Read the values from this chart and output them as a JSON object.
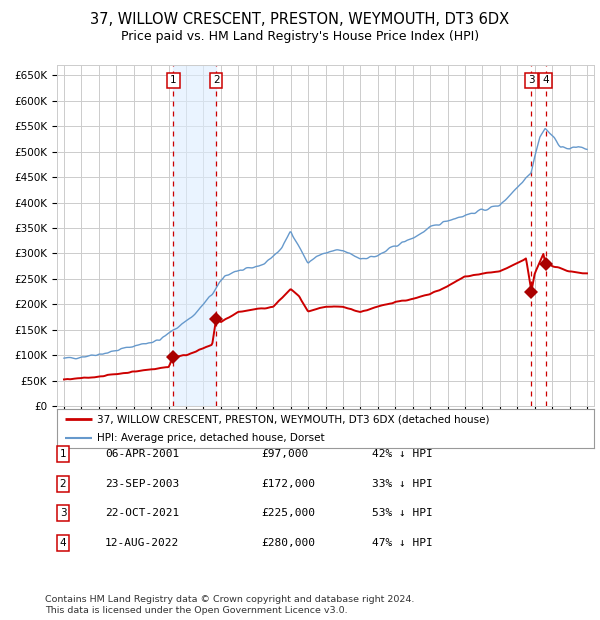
{
  "title": "37, WILLOW CRESCENT, PRESTON, WEYMOUTH, DT3 6DX",
  "subtitle": "Price paid vs. HM Land Registry's House Price Index (HPI)",
  "ylim": [
    0,
    670000
  ],
  "yticks": [
    0,
    50000,
    100000,
    150000,
    200000,
    250000,
    300000,
    350000,
    400000,
    450000,
    500000,
    550000,
    600000,
    650000
  ],
  "xlim_start": 1994.6,
  "xlim_end": 2025.4,
  "title_fontsize": 10.5,
  "subtitle_fontsize": 9,
  "legend1_label": "37, WILLOW CRESCENT, PRESTON, WEYMOUTH, DT3 6DX (detached house)",
  "legend2_label": "HPI: Average price, detached house, Dorset",
  "property_color": "#cc0000",
  "hpi_color": "#6699cc",
  "grid_color": "#cccccc",
  "shade_color": "#ddeeff",
  "vline_color": "#cc0000",
  "marker_color": "#aa0000",
  "transactions": [
    {
      "num": 1,
      "date": 2001.27,
      "price": 97000,
      "label": "06-APR-2001",
      "price_str": "£97,000",
      "pct": "42% ↓ HPI"
    },
    {
      "num": 2,
      "date": 2003.73,
      "price": 172000,
      "label": "23-SEP-2003",
      "price_str": "£172,000",
      "pct": "33% ↓ HPI"
    },
    {
      "num": 3,
      "date": 2021.81,
      "price": 225000,
      "label": "22-OCT-2021",
      "price_str": "£225,000",
      "pct": "53% ↓ HPI"
    },
    {
      "num": 4,
      "date": 2022.62,
      "price": 280000,
      "label": "12-AUG-2022",
      "price_str": "£280,000",
      "pct": "47% ↓ HPI"
    }
  ],
  "footer1": "Contains HM Land Registry data © Crown copyright and database right 2024.",
  "footer2": "This data is licensed under the Open Government Licence v3.0.",
  "hpi_anchors_x": [
    1995.0,
    1996.0,
    1997.5,
    1999.0,
    2000.5,
    2001.5,
    2002.5,
    2003.5,
    2004.2,
    2004.8,
    2005.5,
    2006.5,
    2007.5,
    2008.0,
    2009.0,
    2009.5,
    2010.5,
    2011.0,
    2012.0,
    2013.0,
    2014.0,
    2015.0,
    2016.0,
    2017.0,
    2018.0,
    2019.0,
    2020.0,
    2021.0,
    2021.5,
    2021.8,
    2022.0,
    2022.3,
    2022.6,
    2022.9,
    2023.5,
    2024.0,
    2024.5,
    2025.0
  ],
  "hpi_anchors_y": [
    93000,
    97000,
    105000,
    118000,
    130000,
    155000,
    180000,
    220000,
    255000,
    265000,
    268000,
    280000,
    310000,
    345000,
    280000,
    295000,
    305000,
    305000,
    290000,
    295000,
    315000,
    330000,
    350000,
    365000,
    375000,
    385000,
    395000,
    430000,
    450000,
    460000,
    490000,
    530000,
    545000,
    535000,
    510000,
    505000,
    510000,
    505000
  ],
  "prop_anchors_x": [
    1995.0,
    1996.5,
    1998.0,
    1999.5,
    2001.0,
    2001.27,
    2001.5,
    2002.0,
    2002.5,
    2003.5,
    2003.73,
    2004.0,
    2005.0,
    2006.0,
    2007.0,
    2008.0,
    2008.5,
    2009.0,
    2010.0,
    2011.0,
    2012.0,
    2013.0,
    2014.0,
    2015.0,
    2016.0,
    2017.0,
    2018.0,
    2019.0,
    2020.0,
    2021.0,
    2021.5,
    2021.81,
    2022.0,
    2022.5,
    2022.62,
    2022.8,
    2023.0,
    2024.0,
    2025.0
  ],
  "prop_anchors_y": [
    52000,
    56000,
    63000,
    70000,
    77000,
    97000,
    98000,
    100000,
    107000,
    120000,
    172000,
    165000,
    185000,
    190000,
    195000,
    230000,
    215000,
    185000,
    195000,
    195000,
    185000,
    195000,
    205000,
    210000,
    220000,
    235000,
    255000,
    260000,
    265000,
    280000,
    290000,
    225000,
    260000,
    300000,
    280000,
    280000,
    275000,
    265000,
    260000
  ]
}
